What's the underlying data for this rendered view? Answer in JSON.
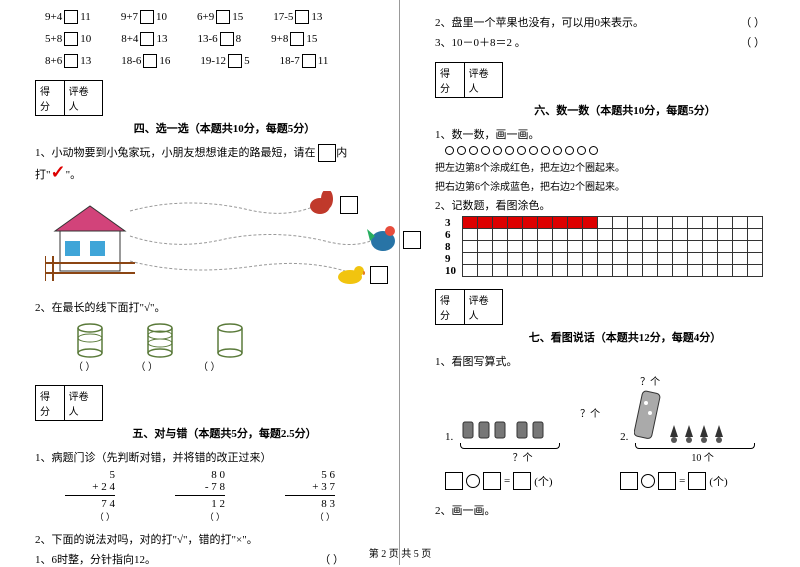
{
  "equations": {
    "row1": [
      "9+4",
      "11",
      "9+7",
      "10",
      "6+9",
      "15",
      "17-5",
      "13"
    ],
    "row2": [
      "5+8",
      "10",
      "8+4",
      "13",
      "13-6",
      "8",
      "9+8",
      "15"
    ],
    "row3": [
      "8+6",
      "13",
      "18-6",
      "16",
      "19-12",
      "5",
      "18-7",
      "11"
    ]
  },
  "scoreLabels": {
    "l1": "得分",
    "l2": "评卷人"
  },
  "section4": {
    "title": "四、选一选（本题共10分，每题5分）",
    "q1": "1、小动物要到小兔家玩，小朋友想想谁走的路最短，",
    "q1b": "请在",
    "q1c": "内打\"",
    "q1d": "\"。",
    "q2": "2、在最长的线下面打\"√\"。",
    "paren": "（  ）"
  },
  "section5": {
    "title": "五、对与错（本题共5分，每题2.5分）",
    "q1": "1、病题门诊（先判断对错，并将错的改正过来）",
    "arith": [
      {
        "n1": "5",
        "n2": "+ 2 4",
        "ans": "7 4"
      },
      {
        "n1": "8 0",
        "n2": "- 7 8",
        "ans": "1 2"
      },
      {
        "n1": "5 6",
        "n2": "+ 3 7",
        "ans": "8 3"
      }
    ],
    "paren": "（  ）",
    "q2a": "2、下面的说法对吗，对的打\"√\"，错的打\"×\"。",
    "q2b": "1、6时整，分针指向12。",
    "q2paren": "（      ）"
  },
  "rightTop": {
    "line2": "2、盘里一个苹果也没有，可以用0来表示。",
    "line2paren": "（      ）",
    "line3": "3、10－0＋8＝2 。",
    "line3paren": "（      ）"
  },
  "section6": {
    "title": "六、数一数（本题共10分，每题5分）",
    "q1a": "1、数一数，画一画。",
    "q1b": "把左边第8个涂成红色，把左边2个圈起来。",
    "q1c": "把右边第6个涂成蓝色，把右边2个圈起来。",
    "q2": "2、记数题，看图涂色。",
    "gridLabels": [
      "3",
      "6",
      "8",
      "9",
      "10"
    ],
    "gridRedCounts": [
      9,
      0,
      0,
      0,
      0
    ],
    "gridCols": 20
  },
  "section7": {
    "title": "七、看图说话（本题共12分，每题4分）",
    "q1": "1、看图写算式。",
    "q2": "2、画一画。",
    "label1": "1.",
    "label2": "2.",
    "qmark": "？个",
    "tenLabel": "10 个",
    "unit": "(个)",
    "eq": "="
  },
  "footer": "第 2 页  共 5 页"
}
